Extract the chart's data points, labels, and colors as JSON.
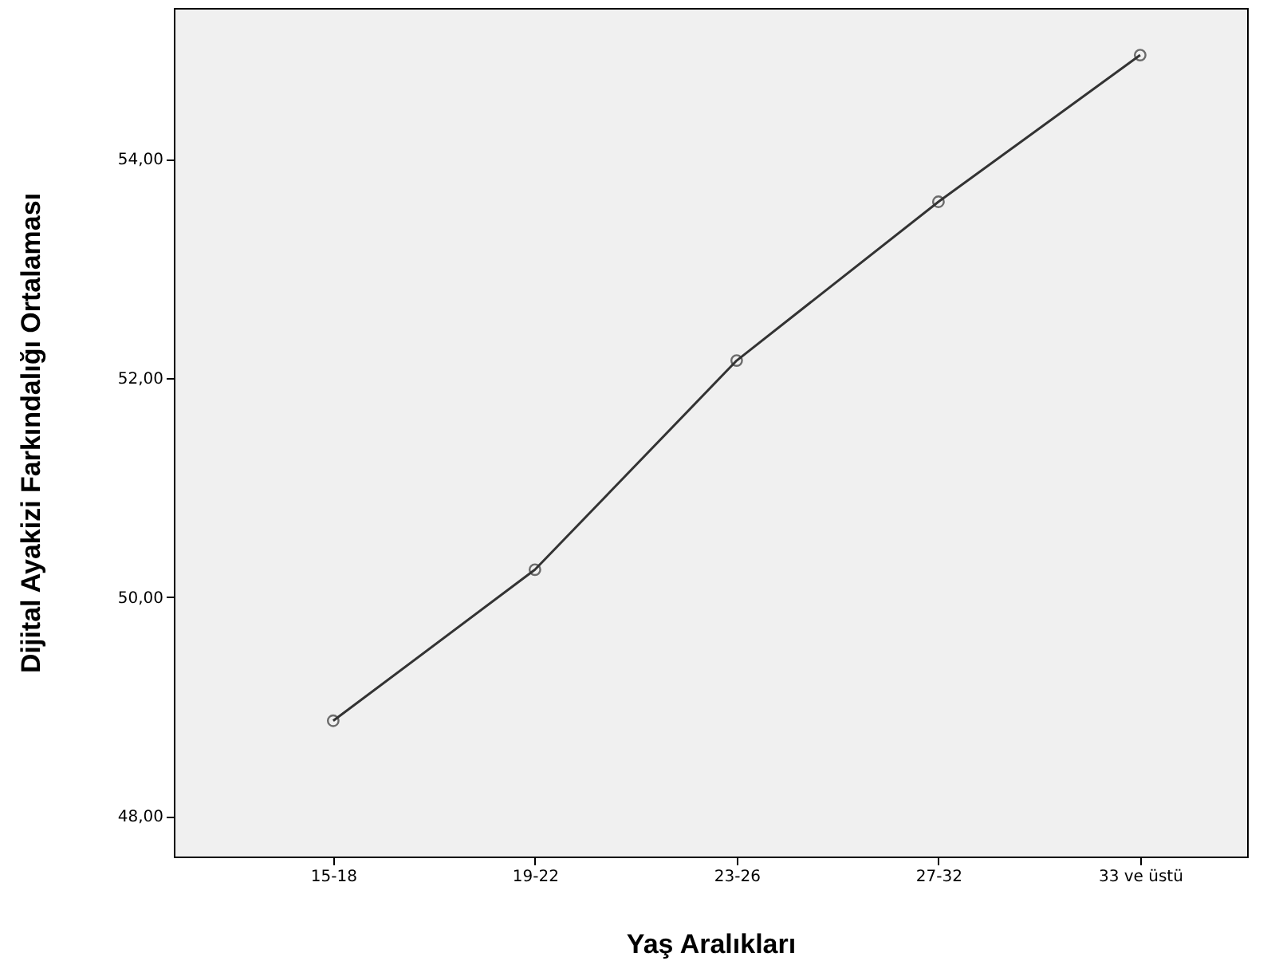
{
  "chart_data": {
    "type": "line",
    "xlabel": "Yaş Aralıkları",
    "ylabel": "Dijital Ayakizi Farkındalığı Ortalaması",
    "categories": [
      "15-18",
      "19-22",
      "23-26",
      "27-32",
      "33 ve üstü"
    ],
    "series": [
      {
        "color": "#333333",
        "values": [
          48.87,
          50.25,
          52.16,
          53.61,
          54.95
        ]
      }
    ],
    "ylim": [
      47.63,
      55.38
    ],
    "yticks": [
      {
        "value": 48,
        "label": "48,00"
      },
      {
        "value": 50,
        "label": "50,00"
      },
      {
        "value": 52,
        "label": "52,00"
      },
      {
        "value": 54,
        "label": "54,00"
      }
    ],
    "marker": "circle",
    "line_style": "solid",
    "grid": false
  }
}
